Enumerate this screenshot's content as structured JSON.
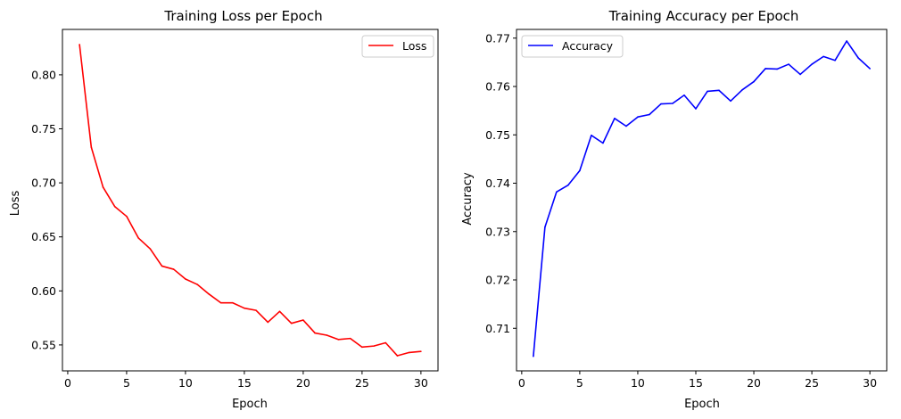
{
  "chart_data": [
    {
      "type": "line",
      "title": "Training Loss per Epoch",
      "xlabel": "Epoch",
      "ylabel": "Loss",
      "xlim": [
        -0.45,
        31.45
      ],
      "ylim": [
        0.526,
        0.842
      ],
      "xticks": [
        0,
        5,
        10,
        15,
        20,
        25,
        30
      ],
      "yticks": [
        0.55,
        0.6,
        0.65,
        0.7,
        0.75,
        0.8
      ],
      "grid": false,
      "legend_position": "top-right",
      "x": [
        1,
        2,
        3,
        4,
        5,
        6,
        7,
        8,
        9,
        10,
        11,
        12,
        13,
        14,
        15,
        16,
        17,
        18,
        19,
        20,
        21,
        22,
        23,
        24,
        25,
        26,
        27,
        28,
        29,
        30
      ],
      "series": [
        {
          "name": "Loss",
          "color": "#ff0000",
          "values": [
            0.828,
            0.733,
            0.696,
            0.678,
            0.669,
            0.649,
            0.639,
            0.623,
            0.62,
            0.611,
            0.606,
            0.597,
            0.589,
            0.589,
            0.584,
            0.582,
            0.571,
            0.581,
            0.57,
            0.573,
            0.561,
            0.559,
            0.555,
            0.556,
            0.548,
            0.549,
            0.552,
            0.54,
            0.543,
            0.544
          ]
        }
      ]
    },
    {
      "type": "line",
      "title": "Training Accuracy per Epoch",
      "xlabel": "Epoch",
      "ylabel": "Accuracy",
      "xlim": [
        -0.45,
        31.45
      ],
      "ylim": [
        0.7012,
        0.7718
      ],
      "xticks": [
        0,
        5,
        10,
        15,
        20,
        25,
        30
      ],
      "yticks": [
        0.71,
        0.72,
        0.73,
        0.74,
        0.75,
        0.76,
        0.77
      ],
      "grid": false,
      "legend_position": "top-left",
      "x": [
        1,
        2,
        3,
        4,
        5,
        6,
        7,
        8,
        9,
        10,
        11,
        12,
        13,
        14,
        15,
        16,
        17,
        18,
        19,
        20,
        21,
        22,
        23,
        24,
        25,
        26,
        27,
        28,
        29,
        30
      ],
      "series": [
        {
          "name": "Accuracy",
          "color": "#0000ff",
          "values": [
            0.7042,
            0.7309,
            0.7382,
            0.7396,
            0.7426,
            0.7499,
            0.7483,
            0.7534,
            0.7518,
            0.7537,
            0.7542,
            0.7564,
            0.7565,
            0.7582,
            0.7554,
            0.759,
            0.7592,
            0.757,
            0.7593,
            0.761,
            0.7637,
            0.7636,
            0.7646,
            0.7625,
            0.7646,
            0.7662,
            0.7654,
            0.7694,
            0.7659,
            0.7637
          ]
        }
      ]
    }
  ]
}
